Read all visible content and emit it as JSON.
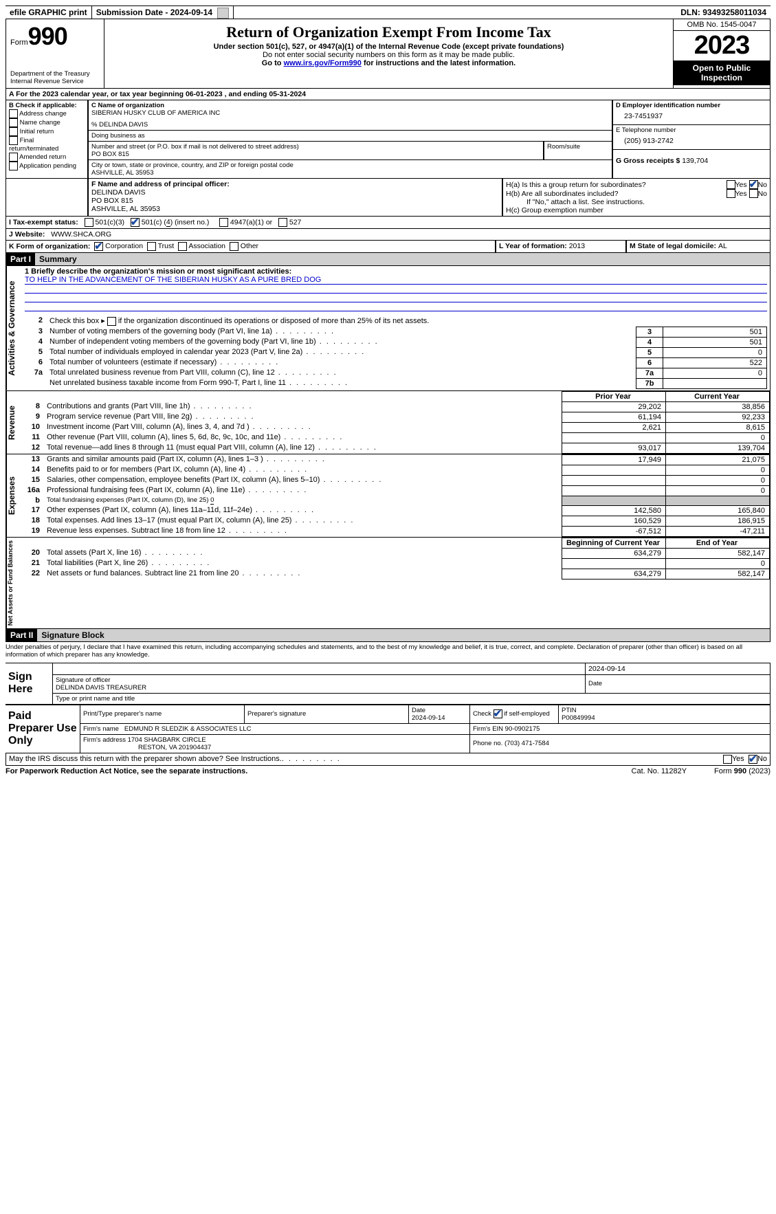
{
  "topbar": {
    "efile": "efile GRAPHIC print",
    "submission_label": "Submission Date - ",
    "submission_date": "2024-09-14",
    "dln_label": "DLN: ",
    "dln": "93493258011034"
  },
  "header": {
    "form_word": "Form",
    "form_num": "990",
    "title": "Return of Organization Exempt From Income Tax",
    "subtitle": "Under section 501(c), 527, or 4947(a)(1) of the Internal Revenue Code (except private foundations)",
    "ssn_note": "Do not enter social security numbers on this form as it may be made public.",
    "goto_prefix": "Go to ",
    "goto_link": "www.irs.gov/Form990",
    "goto_suffix": " for instructions and the latest information.",
    "dept": "Department of the Treasury",
    "irs": "Internal Revenue Service",
    "omb": "OMB No. 1545-0047",
    "tax_year": "2023",
    "open": "Open to Public Inspection"
  },
  "line_a": {
    "text_a": "A For the 2023 calendar year, or tax year beginning ",
    "begin": "06-01-2023",
    "text_b": " , and ending ",
    "end": "05-31-2024"
  },
  "box_b": {
    "label": "B Check if applicable:",
    "items": [
      "Address change",
      "Name change",
      "Initial return",
      "Final return/terminated",
      "Amended return",
      "Application pending"
    ]
  },
  "box_c": {
    "label_name": "C Name of organization",
    "org_name": "SIBERIAN HUSKY CLUB OF AMERICA INC",
    "care_of": "% DELINDA DAVIS",
    "dba_label": "Doing business as",
    "street_label": "Number and street (or P.O. box if mail is not delivered to street address)",
    "room_label": "Room/suite",
    "street": "PO BOX 815",
    "city_label": "City or town, state or province, country, and ZIP or foreign postal code",
    "city": "ASHVILLE, AL  35953"
  },
  "box_d": {
    "label": "D Employer identification number",
    "ein": "23-7451937"
  },
  "box_e": {
    "label": "E Telephone number",
    "phone": "(205) 913-2742"
  },
  "box_g": {
    "label": "G Gross receipts $ ",
    "amount": "139,704"
  },
  "box_f": {
    "label": "F  Name and address of principal officer:",
    "name": "DELINDA DAVIS",
    "addr1": "PO BOX 815",
    "addr2": "ASHVILLE, AL  35953"
  },
  "box_h": {
    "a_label": "H(a)  Is this a group return for subordinates?",
    "b_label": "H(b)  Are all subordinates included?",
    "note": "If \"No,\" attach a list. See instructions.",
    "c_label": "H(c)  Group exemption number",
    "yes": "Yes",
    "no": "No"
  },
  "line_i": {
    "label": "I   Tax-exempt status:",
    "o1": "501(c)(3)",
    "o2_a": "501(c) (",
    "o2_num": "4",
    "o2_b": ") (insert no.)",
    "o3": "4947(a)(1) or",
    "o4": "527"
  },
  "line_j": {
    "label": "J   Website:",
    "url": "WWW.SHCA.ORG"
  },
  "line_k": {
    "label": "K Form of organization:",
    "opts": [
      "Corporation",
      "Trust",
      "Association",
      "Other"
    ],
    "checked_idx": 0
  },
  "line_l": {
    "label": "L Year of formation: ",
    "val": "2013"
  },
  "line_m": {
    "label": "M State of legal domicile: ",
    "val": "AL"
  },
  "part1": {
    "num": "Part I",
    "title": "Summary"
  },
  "mission": {
    "label": "1   Briefly describe the organization's mission or most significant activities:",
    "text": "TO HELP IN THE ADVANCEMENT OF THE SIBERIAN HUSKY AS A PURE BRED DOG"
  },
  "gov_lines": [
    {
      "n": "2",
      "t": "Check this box ▸        if the organization discontinued its operations or disposed of more than 25% of its net assets."
    },
    {
      "n": "3",
      "t": "Number of voting members of the governing body (Part VI, line 1a)",
      "box": "3",
      "v": "501"
    },
    {
      "n": "4",
      "t": "Number of independent voting members of the governing body (Part VI, line 1b)",
      "box": "4",
      "v": "501"
    },
    {
      "n": "5",
      "t": "Total number of individuals employed in calendar year 2023 (Part V, line 2a)",
      "box": "5",
      "v": "0"
    },
    {
      "n": "6",
      "t": "Total number of volunteers (estimate if necessary)",
      "box": "6",
      "v": "522"
    },
    {
      "n": "7a",
      "t": "Total unrelated business revenue from Part VIII, column (C), line 12",
      "box": "7a",
      "v": "0"
    },
    {
      "n": "",
      "t": "Net unrelated business taxable income from Form 990-T, Part I, line 11",
      "box": "7b",
      "v": ""
    }
  ],
  "col_hdr": {
    "prior": "Prior Year",
    "current": "Current Year",
    "begin": "Beginning of Current Year",
    "end": "End of Year"
  },
  "revenue": [
    {
      "n": "8",
      "t": "Contributions and grants (Part VIII, line 1h)",
      "p": "29,202",
      "c": "38,856"
    },
    {
      "n": "9",
      "t": "Program service revenue (Part VIII, line 2g)",
      "p": "61,194",
      "c": "92,233"
    },
    {
      "n": "10",
      "t": "Investment income (Part VIII, column (A), lines 3, 4, and 7d )",
      "p": "2,621",
      "c": "8,615"
    },
    {
      "n": "11",
      "t": "Other revenue (Part VIII, column (A), lines 5, 6d, 8c, 9c, 10c, and 11e)",
      "p": "",
      "c": "0"
    },
    {
      "n": "12",
      "t": "Total revenue—add lines 8 through 11 (must equal Part VIII, column (A), line 12)",
      "p": "93,017",
      "c": "139,704"
    }
  ],
  "expenses": [
    {
      "n": "13",
      "t": "Grants and similar amounts paid (Part IX, column (A), lines 1–3 )",
      "p": "17,949",
      "c": "21,075"
    },
    {
      "n": "14",
      "t": "Benefits paid to or for members (Part IX, column (A), line 4)",
      "p": "",
      "c": "0"
    },
    {
      "n": "15",
      "t": "Salaries, other compensation, employee benefits (Part IX, column (A), lines 5–10)",
      "p": "",
      "c": "0"
    },
    {
      "n": "16a",
      "t": "Professional fundraising fees (Part IX, column (A), line 11e)",
      "p": "",
      "c": "0"
    },
    {
      "n": "b",
      "t": "Total fundraising expenses (Part IX, column (D), line 25) ",
      "sub": "0",
      "grey": true
    },
    {
      "n": "17",
      "t": "Other expenses (Part IX, column (A), lines 11a–11d, 11f–24e)",
      "p": "142,580",
      "c": "165,840"
    },
    {
      "n": "18",
      "t": "Total expenses. Add lines 13–17 (must equal Part IX, column (A), line 25)",
      "p": "160,529",
      "c": "186,915"
    },
    {
      "n": "19",
      "t": "Revenue less expenses. Subtract line 18 from line 12",
      "p": "-67,512",
      "c": "-47,211"
    }
  ],
  "netassets": [
    {
      "n": "20",
      "t": "Total assets (Part X, line 16)",
      "p": "634,279",
      "c": "582,147"
    },
    {
      "n": "21",
      "t": "Total liabilities (Part X, line 26)",
      "p": "",
      "c": "0"
    },
    {
      "n": "22",
      "t": "Net assets or fund balances. Subtract line 21 from line 20",
      "p": "634,279",
      "c": "582,147"
    }
  ],
  "vlabels": {
    "gov": "Activities & Governance",
    "rev": "Revenue",
    "exp": "Expenses",
    "net": "Net Assets or Fund Balances"
  },
  "part2": {
    "num": "Part II",
    "title": "Signature Block"
  },
  "perjury": "Under penalties of perjury, I declare that I have examined this return, including accompanying schedules and statements, and to the best of my knowledge and belief, it is true, correct, and complete. Declaration of preparer (other than officer) is based on all information of which preparer has any knowledge.",
  "sign": {
    "sign_here": "Sign Here",
    "sig_officer": "Signature of officer",
    "officer": "DELINDA DAVIS  TREASURER",
    "type_name": "Type or print name and title",
    "date_label": "Date",
    "date": "2024-09-14"
  },
  "paid": {
    "label": "Paid Preparer Use Only",
    "print_name": "Print/Type preparer's name",
    "prep_sig": "Preparer's signature",
    "date_label": "Date",
    "date": "2024-09-14",
    "check_label": "Check         if self-employed",
    "ptin_label": "PTIN",
    "ptin": "P00849994",
    "firm_name_label": "Firm's name",
    "firm_name": "EDMUND R SLEDZIK & ASSOCIATES LLC",
    "firm_ein_label": "Firm's EIN",
    "firm_ein": "90-0902175",
    "firm_addr_label": "Firm's address",
    "firm_addr1": "1704 SHAGBARK CIRCLE",
    "firm_addr2": "RESTON, VA  201904437",
    "phone_label": "Phone no.",
    "phone": "(703) 471-7584"
  },
  "discuss": {
    "q": "May the IRS discuss this return with the preparer shown above? See Instructions.",
    "yes": "Yes",
    "no": "No"
  },
  "footer": {
    "pra": "For Paperwork Reduction Act Notice, see the separate instructions.",
    "cat": "Cat. No. 11282Y",
    "form": "Form 990 (2023)"
  }
}
